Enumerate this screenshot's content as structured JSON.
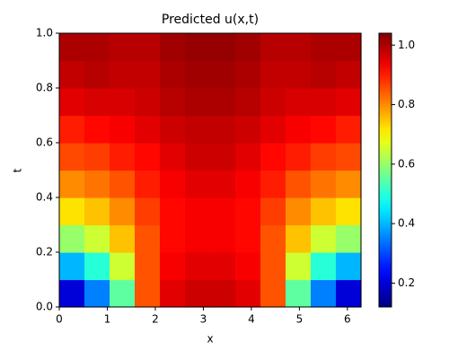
{
  "chart_data": {
    "type": "heatmap",
    "title": "Predicted u(x,t)",
    "x_label": "x",
    "y_label": "t",
    "xlim": [
      0,
      6.283
    ],
    "ylim": [
      0,
      1
    ],
    "xticks": [
      0,
      1,
      2,
      3,
      4,
      5,
      6
    ],
    "yticks": [
      {
        "value": 0,
        "label": "0.0"
      },
      0.2,
      0.4,
      0.6,
      0.8,
      {
        "value": 1,
        "label": "1.0"
      }
    ],
    "colormap": "jet",
    "clim": [
      0.12,
      1.04
    ],
    "cticks": [
      0.2,
      0.4,
      0.6,
      0.8,
      {
        "value": 1,
        "label": "1.0"
      }
    ],
    "z": [
      [
        0.2,
        0.35,
        0.55,
        0.85,
        0.95,
        0.97,
        0.97,
        0.95,
        0.85,
        0.55,
        0.35,
        0.2
      ],
      [
        0.4,
        0.5,
        0.65,
        0.85,
        0.93,
        0.95,
        0.95,
        0.93,
        0.85,
        0.65,
        0.5,
        0.4
      ],
      [
        0.6,
        0.65,
        0.75,
        0.85,
        0.92,
        0.93,
        0.93,
        0.92,
        0.85,
        0.75,
        0.65,
        0.6
      ],
      [
        0.72,
        0.75,
        0.8,
        0.87,
        0.92,
        0.93,
        0.93,
        0.92,
        0.87,
        0.8,
        0.75,
        0.72
      ],
      [
        0.8,
        0.82,
        0.85,
        0.9,
        0.93,
        0.95,
        0.95,
        0.93,
        0.9,
        0.85,
        0.82,
        0.8
      ],
      [
        0.86,
        0.87,
        0.9,
        0.92,
        0.95,
        0.97,
        0.97,
        0.95,
        0.92,
        0.9,
        0.87,
        0.86
      ],
      [
        0.9,
        0.92,
        0.93,
        0.95,
        0.97,
        0.98,
        0.98,
        0.97,
        0.95,
        0.93,
        0.92,
        0.9
      ],
      [
        0.95,
        0.96,
        0.96,
        0.97,
        0.99,
        1.0,
        1.0,
        0.99,
        0.97,
        0.96,
        0.96,
        0.95
      ],
      [
        0.98,
        0.99,
        0.98,
        0.98,
        1.0,
        1.01,
        1.01,
        1.0,
        0.98,
        0.98,
        0.99,
        0.98
      ],
      [
        1.0,
        1.0,
        0.99,
        0.99,
        1.01,
        1.02,
        1.02,
        1.01,
        0.99,
        0.99,
        1.0,
        1.0
      ]
    ]
  }
}
